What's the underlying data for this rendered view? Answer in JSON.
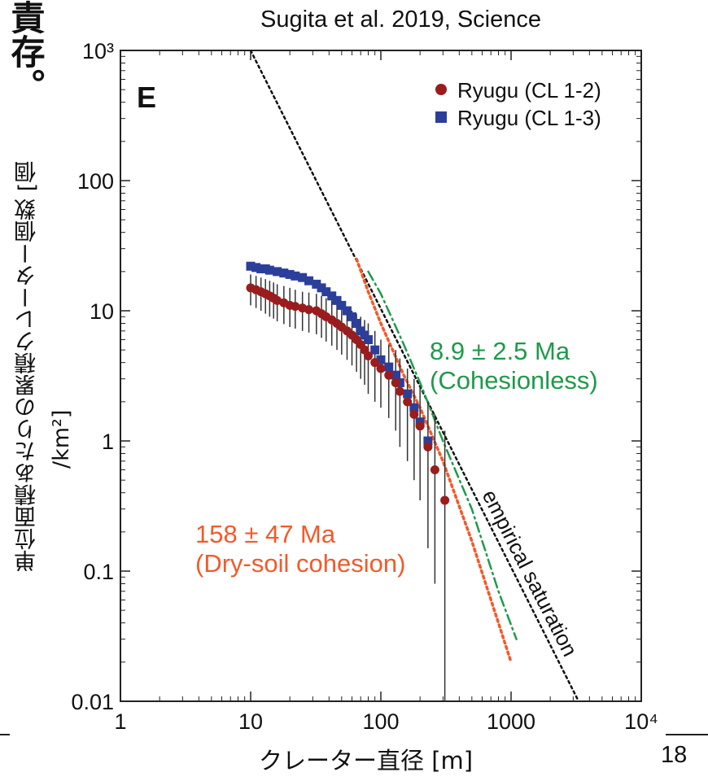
{
  "slide": {
    "title_fragment": "責存。",
    "citation": "Sugita et al. 2019, Science",
    "page_number": "18",
    "ylabel_main": "単位面積あたりの累積クレーター個数 [個",
    "ylabel_unit": "/km²]",
    "xlabel": "クレーター直径 [m]"
  },
  "chart_data": {
    "type": "scatter",
    "panel_label": "E",
    "x_scale": "log",
    "y_scale": "log",
    "xlim": [
      1,
      10000
    ],
    "ylim": [
      0.01,
      1000
    ],
    "x_ticks": [
      1,
      10,
      100,
      1000,
      10000
    ],
    "x_tick_labels": [
      "1",
      "10",
      "100",
      "1000",
      "10⁴"
    ],
    "y_ticks": [
      0.01,
      0.1,
      1,
      10,
      100,
      1000
    ],
    "y_tick_labels": [
      "0.01",
      "0.1",
      "1",
      "10",
      "100",
      "10³"
    ],
    "grid": false,
    "legend_position": "top-right",
    "series": [
      {
        "name": "Ryugu (CL 1-2)",
        "marker": "circle",
        "color": "#9b1c1c",
        "x": [
          10,
          11,
          12,
          13,
          14,
          15,
          16,
          18,
          20,
          22,
          25,
          28,
          32,
          35,
          38,
          42,
          46,
          50,
          55,
          60,
          65,
          70,
          75,
          80,
          90,
          100,
          115,
          130,
          140,
          160,
          180,
          200,
          230,
          260,
          310
        ],
        "y": [
          15,
          14.5,
          14,
          13.5,
          13,
          12.5,
          12,
          11.5,
          11,
          10.8,
          10.5,
          10.2,
          10,
          9.5,
          9,
          8.5,
          8,
          7.5,
          7,
          6.5,
          6,
          5.5,
          5,
          4.5,
          4,
          3.6,
          3.2,
          2.8,
          2.4,
          2,
          1.6,
          1.3,
          0.9,
          0.6,
          0.35
        ],
        "err_low": [
          11,
          10.5,
          10,
          9.5,
          9,
          8.7,
          8.3,
          7.9,
          7.5,
          7.3,
          7,
          6.8,
          6.6,
          6.2,
          5.8,
          5.4,
          5,
          4.6,
          4.2,
          3.8,
          3.4,
          3,
          2.7,
          2.3,
          2,
          1.8,
          1.5,
          1.2,
          0.9,
          0.7,
          0.5,
          0.35,
          0.15,
          0.08,
          0.01
        ],
        "err_high": [
          19,
          18.5,
          18,
          17.5,
          17,
          16.5,
          16,
          15.5,
          15,
          14.5,
          14,
          13.8,
          13.5,
          13,
          12.5,
          12,
          11.5,
          11,
          10.5,
          10,
          9.5,
          9,
          8.5,
          8,
          7,
          6,
          5.5,
          5,
          4.3,
          3.6,
          3,
          2.6,
          2,
          1.6,
          1.2
        ]
      },
      {
        "name": "Ryugu (CL 1-3)",
        "marker": "square",
        "color": "#2b3f9a",
        "x": [
          10,
          11,
          12,
          13,
          14,
          16,
          18,
          20,
          22,
          25,
          28,
          32,
          35,
          38,
          42,
          46,
          50,
          55,
          60,
          65,
          70,
          75,
          80,
          90,
          100,
          115,
          130,
          140,
          160,
          180,
          200,
          230
        ],
        "y": [
          22,
          21.5,
          21,
          21,
          20.5,
          20,
          19.5,
          19,
          18.5,
          18,
          17,
          16,
          15,
          14,
          13,
          12,
          11,
          10,
          9,
          8,
          7,
          6.5,
          6,
          5,
          4.2,
          3.7,
          3.2,
          2.8,
          2.3,
          1.8,
          1.4,
          1
        ]
      }
    ],
    "lines": [
      {
        "name": "empirical saturation",
        "style": "dotted",
        "color": "#111111",
        "x": [
          10,
          3300
        ],
        "y": [
          1000,
          0.01
        ]
      },
      {
        "name": "8.9 ± 2.5 Ma (Cohesionless)",
        "style": "dash-dot",
        "color": "#1f9a4a",
        "x": [
          80,
          100,
          150,
          200,
          300,
          500,
          800,
          1100
        ],
        "y": [
          20,
          13.5,
          5.5,
          2.8,
          1.0,
          0.3,
          0.07,
          0.03
        ]
      },
      {
        "name": "158 ± 47 Ma (Dry-soil cohesion)",
        "style": "dotted",
        "color": "#f25a2a",
        "x": [
          65,
          80,
          100,
          150,
          200,
          300,
          500,
          800,
          1000
        ],
        "y": [
          25,
          14,
          8,
          3.2,
          1.8,
          0.7,
          0.17,
          0.04,
          0.02
        ]
      }
    ],
    "annotations": {
      "cohesionless_line1": "8.9 ± 2.5 Ma",
      "cohesionless_line2": "(Cohesionless)",
      "dry_soil_line1": "158 ± 47 Ma",
      "dry_soil_line2": "(Dry-soil cohesion)",
      "saturation": "empirical saturation"
    },
    "colors": {
      "cohesionless": "#1f9a4a",
      "dry_soil": "#f25a2a",
      "saturation": "#111111",
      "error_bar": "#333333"
    }
  }
}
